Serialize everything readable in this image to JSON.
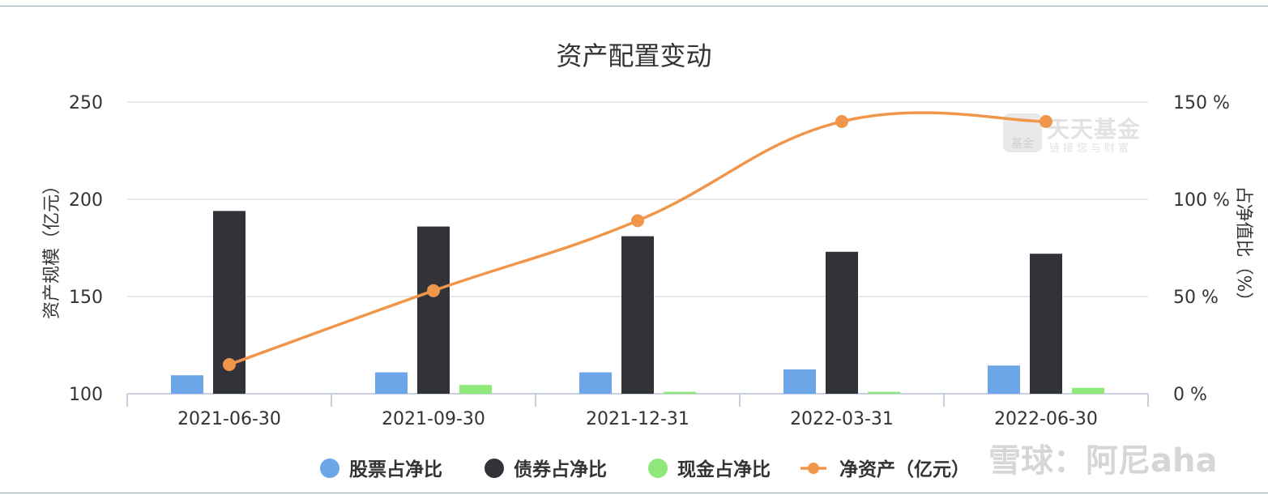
{
  "watermark": {
    "brand": "天天基金",
    "slogan": "链接您与财富",
    "logo_text": "基金",
    "xueqiu": "雪球：阿尼aha"
  },
  "chart_data": {
    "type": "bar",
    "title": "资产配置变动",
    "categories": [
      "2021-06-30",
      "2021-09-30",
      "2021-12-31",
      "2022-03-31",
      "2022-06-30"
    ],
    "y_left": {
      "label": "资产规模（亿元）",
      "range": [
        100,
        250
      ],
      "ticks": [
        "100",
        "150",
        "200",
        "250"
      ]
    },
    "y_right": {
      "label": "占净值比（%）",
      "range": [
        0,
        150
      ],
      "ticks": [
        "0 %",
        "50 %",
        "100 %",
        "150 %"
      ]
    },
    "series": [
      {
        "name": "股票占净比",
        "type": "bar",
        "axis": "right",
        "color": "#6aa6e8",
        "values": [
          9.5,
          11.0,
          11.0,
          12.5,
          14.5
        ]
      },
      {
        "name": "债券占净比",
        "type": "bar",
        "axis": "right",
        "color": "#323338",
        "values": [
          94,
          86,
          81,
          73,
          72
        ]
      },
      {
        "name": "现金占净比",
        "type": "bar",
        "axis": "right",
        "color": "#8ee87a",
        "values": [
          0,
          4.5,
          1.0,
          1.0,
          3.0
        ]
      },
      {
        "name": "净资产（亿元）",
        "type": "line",
        "axis": "left",
        "color": "#f0964b",
        "values": [
          115,
          153,
          189,
          240,
          240
        ]
      }
    ],
    "legend_position": "bottom",
    "grid": true
  }
}
